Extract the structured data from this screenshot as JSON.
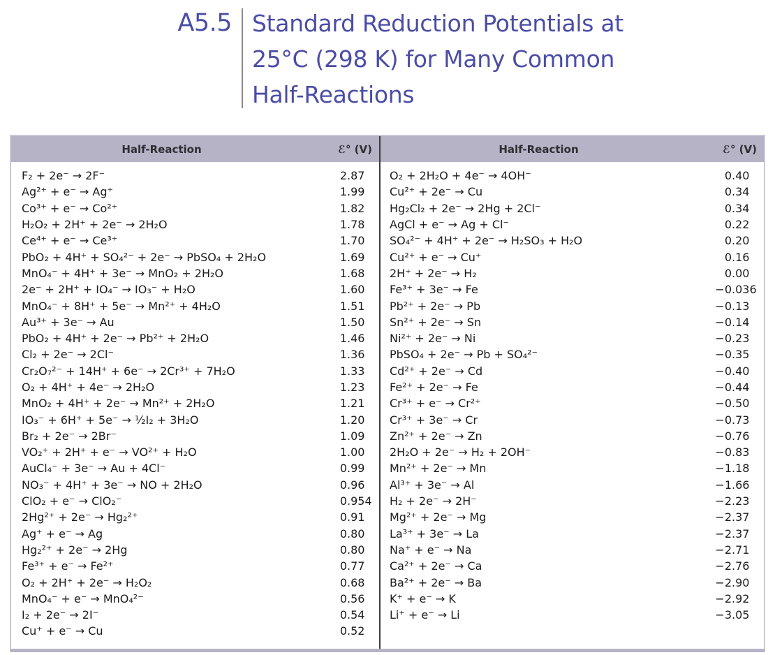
{
  "title": {
    "label": "A5.5",
    "full_text": "Standard Reduction Potentials at 25°C (298 K) for Many Common Half-Reactions",
    "lines": [
      "Standard Reduction Potentials at",
      "25°C (298 K) for Many Common",
      "Half-Reactions"
    ]
  },
  "colors": {
    "title_accent": "#4b4da6",
    "header_bg": "#b5b3c5",
    "header_text": "#2e2d33",
    "body_text": "#1c1c1e",
    "mid_divider": "#3c3a42",
    "table_border": "#cac7d7"
  },
  "table": {
    "header": {
      "reaction_label": "Half-Reaction",
      "potential_label": "ℰ° (V)"
    },
    "left_rows": [
      {
        "reaction": "F₂ + 2e⁻ → 2F⁻",
        "potential": "2.87"
      },
      {
        "reaction": "Ag²⁺ + e⁻ → Ag⁺",
        "potential": "1.99"
      },
      {
        "reaction": "Co³⁺ + e⁻ → Co²⁺",
        "potential": "1.82"
      },
      {
        "reaction": "H₂O₂ + 2H⁺ + 2e⁻ → 2H₂O",
        "potential": "1.78"
      },
      {
        "reaction": "Ce⁴⁺ + e⁻ → Ce³⁺",
        "potential": "1.70"
      },
      {
        "reaction": "PbO₂ + 4H⁺ + SO₄²⁻ + 2e⁻ → PbSO₄ + 2H₂O",
        "potential": "1.69"
      },
      {
        "reaction": "MnO₄⁻ + 4H⁺ + 3e⁻ → MnO₂ + 2H₂O",
        "potential": "1.68"
      },
      {
        "reaction": "2e⁻ + 2H⁺ + IO₄⁻ → IO₃⁻ + H₂O",
        "potential": "1.60"
      },
      {
        "reaction": "MnO₄⁻ + 8H⁺ + 5e⁻ → Mn²⁺ + 4H₂O",
        "potential": "1.51"
      },
      {
        "reaction": "Au³⁺ + 3e⁻ → Au",
        "potential": "1.50"
      },
      {
        "reaction": "PbO₂ + 4H⁺ + 2e⁻ → Pb²⁺ + 2H₂O",
        "potential": "1.46"
      },
      {
        "reaction": "Cl₂ + 2e⁻ → 2Cl⁻",
        "potential": "1.36"
      },
      {
        "reaction": "Cr₂O₇²⁻ + 14H⁺ + 6e⁻ → 2Cr³⁺ + 7H₂O",
        "potential": "1.33"
      },
      {
        "reaction": "O₂ + 4H⁺ + 4e⁻ → 2H₂O",
        "potential": "1.23"
      },
      {
        "reaction": "MnO₂ + 4H⁺ + 2e⁻ → Mn²⁺ + 2H₂O",
        "potential": "1.21"
      },
      {
        "reaction": "IO₃⁻ + 6H⁺ + 5e⁻ → ½I₂ + 3H₂O",
        "potential": "1.20"
      },
      {
        "reaction": "Br₂ + 2e⁻ → 2Br⁻",
        "potential": "1.09"
      },
      {
        "reaction": "VO₂⁺ + 2H⁺ + e⁻ → VO²⁺ + H₂O",
        "potential": "1.00"
      },
      {
        "reaction": "AuCl₄⁻ + 3e⁻ → Au + 4Cl⁻",
        "potential": "0.99"
      },
      {
        "reaction": "NO₃⁻ + 4H⁺ + 3e⁻ → NO + 2H₂O",
        "potential": "0.96"
      },
      {
        "reaction": "ClO₂ + e⁻ → ClO₂⁻",
        "potential": "0.954"
      },
      {
        "reaction": "2Hg²⁺ + 2e⁻ → Hg₂²⁺",
        "potential": "0.91"
      },
      {
        "reaction": "Ag⁺ + e⁻ → Ag",
        "potential": "0.80"
      },
      {
        "reaction": "Hg₂²⁺ + 2e⁻ → 2Hg",
        "potential": "0.80"
      },
      {
        "reaction": "Fe³⁺ + e⁻ → Fe²⁺",
        "potential": "0.77"
      },
      {
        "reaction": "O₂ + 2H⁺ + 2e⁻ → H₂O₂",
        "potential": "0.68"
      },
      {
        "reaction": "MnO₄⁻ + e⁻ → MnO₄²⁻",
        "potential": "0.56"
      },
      {
        "reaction": "I₂ + 2e⁻ → 2I⁻",
        "potential": "0.54"
      },
      {
        "reaction": "Cu⁺ + e⁻ → Cu",
        "potential": "0.52"
      }
    ],
    "right_rows": [
      {
        "reaction": "O₂ + 2H₂O + 4e⁻ → 4OH⁻",
        "potential": "0.40"
      },
      {
        "reaction": "Cu²⁺ + 2e⁻ → Cu",
        "potential": "0.34"
      },
      {
        "reaction": "Hg₂Cl₂ + 2e⁻ → 2Hg + 2Cl⁻",
        "potential": "0.34"
      },
      {
        "reaction": "AgCl + e⁻ → Ag + Cl⁻",
        "potential": "0.22"
      },
      {
        "reaction": "SO₄²⁻ + 4H⁺ + 2e⁻ → H₂SO₃ + H₂O",
        "potential": "0.20"
      },
      {
        "reaction": "Cu²⁺ + e⁻ → Cu⁺",
        "potential": "0.16"
      },
      {
        "reaction": "2H⁺ + 2e⁻ → H₂",
        "potential": "0.00"
      },
      {
        "reaction": "Fe³⁺ + 3e⁻ → Fe",
        "potential": "−0.036"
      },
      {
        "reaction": "Pb²⁺ + 2e⁻ → Pb",
        "potential": "−0.13"
      },
      {
        "reaction": "Sn²⁺ + 2e⁻ → Sn",
        "potential": "−0.14"
      },
      {
        "reaction": "Ni²⁺ + 2e⁻ → Ni",
        "potential": "−0.23"
      },
      {
        "reaction": "PbSO₄ + 2e⁻ → Pb + SO₄²⁻",
        "potential": "−0.35"
      },
      {
        "reaction": "Cd²⁺ + 2e⁻ → Cd",
        "potential": "−0.40"
      },
      {
        "reaction": "Fe²⁺ + 2e⁻ → Fe",
        "potential": "−0.44"
      },
      {
        "reaction": "Cr³⁺ + e⁻ → Cr²⁺",
        "potential": "−0.50"
      },
      {
        "reaction": "Cr³⁺ + 3e⁻ → Cr",
        "potential": "−0.73"
      },
      {
        "reaction": "Zn²⁺ + 2e⁻ → Zn",
        "potential": "−0.76"
      },
      {
        "reaction": "2H₂O + 2e⁻ → H₂ + 2OH⁻",
        "potential": "−0.83"
      },
      {
        "reaction": "Mn²⁺ + 2e⁻ → Mn",
        "potential": "−1.18"
      },
      {
        "reaction": "Al³⁺ + 3e⁻ → Al",
        "potential": "−1.66"
      },
      {
        "reaction": "H₂ + 2e⁻ → 2H⁻",
        "potential": "−2.23"
      },
      {
        "reaction": "Mg²⁺ + 2e⁻ → Mg",
        "potential": "−2.37"
      },
      {
        "reaction": "La³⁺ + 3e⁻ → La",
        "potential": "−2.37"
      },
      {
        "reaction": "Na⁺ + e⁻ → Na",
        "potential": "−2.71"
      },
      {
        "reaction": "Ca²⁺ + 2e⁻ → Ca",
        "potential": "−2.76"
      },
      {
        "reaction": "Ba²⁺ + 2e⁻ → Ba",
        "potential": "−2.90"
      },
      {
        "reaction": "K⁺ + e⁻ → K",
        "potential": "−2.92"
      },
      {
        "reaction": "Li⁺ + e⁻ → Li",
        "potential": "−3.05"
      }
    ]
  }
}
